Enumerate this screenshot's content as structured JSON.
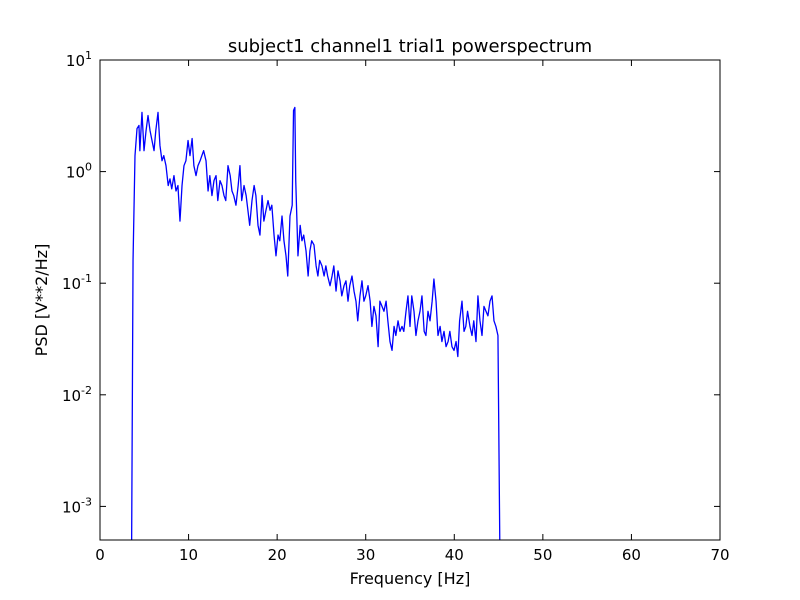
{
  "chart_data": {
    "type": "line",
    "title": "subject1 channel1 trial1 powerspectrum",
    "xlabel": "Frequency [Hz]",
    "ylabel": "PSD [V**2/Hz]",
    "color": "#0000ff",
    "yscale": "log",
    "grid": false,
    "xlim": [
      0,
      70
    ],
    "xticks": [
      0,
      10,
      20,
      30,
      40,
      50,
      60,
      70
    ],
    "ylim": [
      0.0005,
      10
    ],
    "yticks": [
      {
        "value": 0.001,
        "label": "10^-3"
      },
      {
        "value": 0.01,
        "label": "10^-2"
      },
      {
        "value": 0.1,
        "label": "10^-1"
      },
      {
        "value": 1,
        "label": "10^0"
      },
      {
        "value": 10,
        "label": "10^1"
      }
    ],
    "x": [
      3.56,
      3.73,
      3.95,
      4.18,
      4.4,
      4.5,
      4.74,
      4.97,
      5.2,
      5.42,
      5.65,
      5.87,
      6.1,
      6.3,
      6.55,
      6.77,
      7.0,
      7.2,
      7.45,
      7.7,
      7.9,
      8.1,
      8.35,
      8.58,
      8.8,
      9.03,
      9.26,
      9.48,
      9.7,
      9.94,
      10.16,
      10.4,
      10.6,
      10.84,
      11.06,
      11.3,
      11.5,
      11.7,
      11.97,
      12.2,
      12.4,
      12.64,
      12.87,
      13.1,
      13.3,
      13.55,
      13.77,
      14.0,
      14.2,
      14.45,
      14.7,
      14.9,
      15.1,
      15.35,
      15.6,
      15.8,
      16.0,
      16.26,
      16.5,
      16.7,
      16.9,
      17.16,
      17.4,
      17.6,
      17.84,
      18.06,
      18.3,
      18.5,
      18.74,
      18.97,
      19.2,
      19.4,
      19.65,
      19.87,
      20.1,
      20.3,
      20.55,
      20.77,
      21.0,
      21.2,
      21.45,
      21.7,
      21.85,
      22.0,
      22.1,
      22.35,
      22.6,
      22.8,
      23.0,
      23.26,
      23.5,
      23.7,
      23.9,
      24.16,
      24.4,
      24.6,
      24.8,
      25.06,
      25.3,
      25.5,
      25.7,
      25.97,
      26.2,
      26.4,
      26.65,
      26.87,
      27.1,
      27.3,
      27.55,
      27.77,
      28.0,
      28.2,
      28.45,
      28.68,
      28.9,
      29.1,
      29.35,
      29.58,
      29.8,
      30.0,
      30.26,
      30.5,
      30.7,
      30.93,
      31.16,
      31.4,
      31.6,
      31.84,
      32.06,
      32.3,
      32.5,
      32.74,
      32.97,
      33.2,
      33.4,
      33.65,
      33.87,
      34.1,
      34.3,
      34.55,
      34.77,
      35.0,
      35.2,
      35.45,
      35.67,
      35.9,
      36.13,
      36.35,
      36.6,
      36.8,
      37.03,
      37.26,
      37.5,
      37.7,
      37.94,
      38.16,
      38.4,
      38.6,
      38.84,
      39.07,
      39.3,
      39.5,
      39.74,
      39.97,
      40.2,
      40.4,
      40.6,
      40.87,
      41.1,
      41.3,
      41.5,
      41.77,
      42.0,
      42.2,
      42.45,
      42.67,
      42.9,
      43.13,
      43.35,
      43.58,
      43.8,
      44.03,
      44.26,
      44.48,
      44.7,
      44.93,
      45.16
    ],
    "values": [
      0.0003,
      0.16,
      1.39,
      2.43,
      2.59,
      1.54,
      3.39,
      1.54,
      2.33,
      3.18,
      2.33,
      1.9,
      1.54,
      2.33,
      3.39,
      1.71,
      1.25,
      1.39,
      1.13,
      0.75,
      0.86,
      0.7,
      0.92,
      0.67,
      0.75,
      0.36,
      0.75,
      1.13,
      1.25,
      1.9,
      1.39,
      1.98,
      1.13,
      0.92,
      1.13,
      1.25,
      1.39,
      1.54,
      1.25,
      0.67,
      0.92,
      0.61,
      0.83,
      0.92,
      0.55,
      0.83,
      0.75,
      0.61,
      0.55,
      1.13,
      0.92,
      0.67,
      0.61,
      0.5,
      0.75,
      1.13,
      0.55,
      0.75,
      0.61,
      0.45,
      0.33,
      0.55,
      0.75,
      0.61,
      0.33,
      0.27,
      0.61,
      0.36,
      0.45,
      0.55,
      0.45,
      0.5,
      0.27,
      0.176,
      0.27,
      0.24,
      0.4,
      0.24,
      0.176,
      0.116,
      0.4,
      0.5,
      3.53,
      3.76,
      0.83,
      0.176,
      0.33,
      0.24,
      0.27,
      0.195,
      0.116,
      0.195,
      0.24,
      0.22,
      0.143,
      0.116,
      0.16,
      0.143,
      0.116,
      0.143,
      0.116,
      0.095,
      0.116,
      0.143,
      0.085,
      0.129,
      0.105,
      0.077,
      0.095,
      0.105,
      0.069,
      0.095,
      0.116,
      0.085,
      0.069,
      0.046,
      0.077,
      0.105,
      0.069,
      0.077,
      0.095,
      0.069,
      0.041,
      0.062,
      0.051,
      0.027,
      0.069,
      0.062,
      0.056,
      0.069,
      0.046,
      0.03,
      0.025,
      0.041,
      0.034,
      0.046,
      0.037,
      0.041,
      0.037,
      0.056,
      0.077,
      0.041,
      0.077,
      0.056,
      0.034,
      0.046,
      0.056,
      0.077,
      0.037,
      0.034,
      0.056,
      0.046,
      0.069,
      0.109,
      0.069,
      0.034,
      0.041,
      0.03,
      0.037,
      0.027,
      0.03,
      0.037,
      0.027,
      0.025,
      0.03,
      0.022,
      0.046,
      0.069,
      0.037,
      0.041,
      0.056,
      0.041,
      0.034,
      0.046,
      0.03,
      0.077,
      0.046,
      0.034,
      0.062,
      0.056,
      0.051,
      0.069,
      0.077,
      0.046,
      0.041,
      0.034,
      0.0003
    ]
  }
}
